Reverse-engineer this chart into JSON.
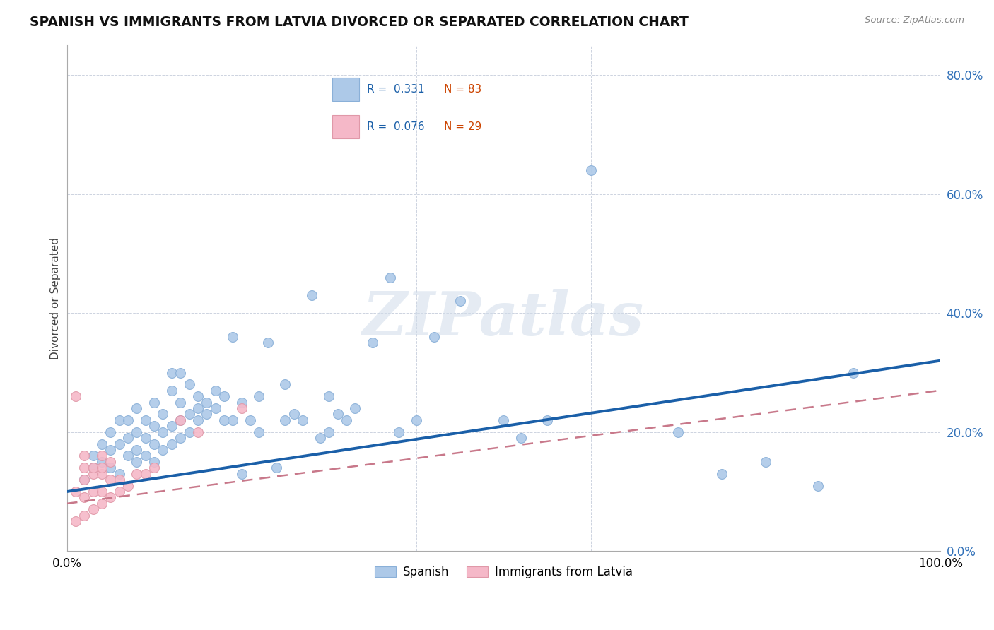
{
  "title": "SPANISH VS IMMIGRANTS FROM LATVIA DIVORCED OR SEPARATED CORRELATION CHART",
  "source": "Source: ZipAtlas.com",
  "ylabel": "Divorced or Separated",
  "xlim": [
    0.0,
    1.0
  ],
  "ylim": [
    0.0,
    0.85
  ],
  "yticks": [
    0.0,
    0.2,
    0.4,
    0.6,
    0.8
  ],
  "ytick_labels": [
    "0.0%",
    "20.0%",
    "40.0%",
    "60.0%",
    "80.0%"
  ],
  "blue_R": 0.331,
  "blue_N": 83,
  "pink_R": 0.076,
  "pink_N": 29,
  "blue_color": "#adc9e8",
  "pink_color": "#f5b8c8",
  "blue_line_color": "#1a5fa8",
  "pink_line_color": "#c8788a",
  "watermark": "ZIPatlas",
  "legend_label_blue": "Spanish",
  "legend_label_pink": "Immigrants from Latvia",
  "blue_scatter_x": [
    0.02,
    0.03,
    0.03,
    0.04,
    0.04,
    0.05,
    0.05,
    0.05,
    0.06,
    0.06,
    0.06,
    0.07,
    0.07,
    0.07,
    0.08,
    0.08,
    0.08,
    0.08,
    0.09,
    0.09,
    0.09,
    0.1,
    0.1,
    0.1,
    0.1,
    0.11,
    0.11,
    0.11,
    0.12,
    0.12,
    0.12,
    0.12,
    0.13,
    0.13,
    0.13,
    0.13,
    0.14,
    0.14,
    0.14,
    0.15,
    0.15,
    0.15,
    0.16,
    0.16,
    0.17,
    0.17,
    0.18,
    0.18,
    0.19,
    0.19,
    0.2,
    0.2,
    0.21,
    0.22,
    0.22,
    0.23,
    0.24,
    0.25,
    0.25,
    0.26,
    0.27,
    0.28,
    0.29,
    0.3,
    0.3,
    0.31,
    0.32,
    0.33,
    0.35,
    0.37,
    0.38,
    0.4,
    0.42,
    0.45,
    0.5,
    0.52,
    0.55,
    0.6,
    0.7,
    0.75,
    0.8,
    0.86,
    0.9
  ],
  "blue_scatter_y": [
    0.12,
    0.14,
    0.16,
    0.15,
    0.18,
    0.14,
    0.17,
    0.2,
    0.13,
    0.18,
    0.22,
    0.16,
    0.19,
    0.22,
    0.15,
    0.17,
    0.2,
    0.24,
    0.16,
    0.19,
    0.22,
    0.15,
    0.18,
    0.21,
    0.25,
    0.17,
    0.2,
    0.23,
    0.18,
    0.21,
    0.27,
    0.3,
    0.19,
    0.22,
    0.25,
    0.3,
    0.2,
    0.23,
    0.28,
    0.22,
    0.24,
    0.26,
    0.23,
    0.25,
    0.24,
    0.27,
    0.22,
    0.26,
    0.22,
    0.36,
    0.13,
    0.25,
    0.22,
    0.2,
    0.26,
    0.35,
    0.14,
    0.22,
    0.28,
    0.23,
    0.22,
    0.43,
    0.19,
    0.2,
    0.26,
    0.23,
    0.22,
    0.24,
    0.35,
    0.46,
    0.2,
    0.22,
    0.36,
    0.42,
    0.22,
    0.19,
    0.22,
    0.64,
    0.2,
    0.13,
    0.15,
    0.11,
    0.3
  ],
  "pink_scatter_x": [
    0.01,
    0.01,
    0.01,
    0.02,
    0.02,
    0.02,
    0.02,
    0.02,
    0.03,
    0.03,
    0.03,
    0.03,
    0.04,
    0.04,
    0.04,
    0.04,
    0.04,
    0.05,
    0.05,
    0.05,
    0.06,
    0.06,
    0.07,
    0.08,
    0.09,
    0.1,
    0.13,
    0.15,
    0.2
  ],
  "pink_scatter_y": [
    0.05,
    0.1,
    0.26,
    0.06,
    0.09,
    0.12,
    0.14,
    0.16,
    0.07,
    0.1,
    0.13,
    0.14,
    0.08,
    0.1,
    0.13,
    0.14,
    0.16,
    0.09,
    0.12,
    0.15,
    0.1,
    0.12,
    0.11,
    0.13,
    0.13,
    0.14,
    0.22,
    0.2,
    0.24
  ],
  "blue_trend_x": [
    0.0,
    1.0
  ],
  "blue_trend_y": [
    0.1,
    0.32
  ],
  "pink_trend_x": [
    0.0,
    1.0
  ],
  "pink_trend_y": [
    0.08,
    0.27
  ]
}
